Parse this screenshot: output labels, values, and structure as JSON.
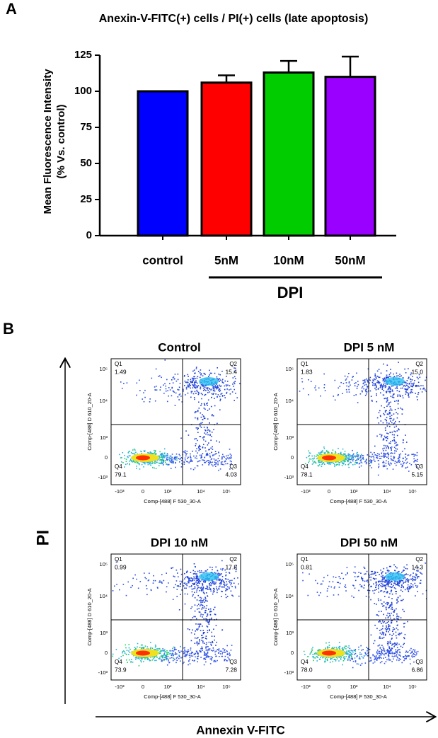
{
  "panel_labels": [
    "A",
    "B"
  ],
  "chart_data": {
    "type": "bar",
    "title": "Anexin-V-FITC(+) cells / PI(+) cells (late apoptosis)",
    "y_label": [
      "Mean Fluorescence Intensity",
      "(% Vs. control)"
    ],
    "categories": [
      "control",
      "5nM",
      "10nM",
      "50nM"
    ],
    "group_label": "DPI",
    "values": [
      100,
      106,
      113,
      110
    ],
    "errors": [
      0,
      5,
      8,
      14
    ],
    "colors": [
      "#0000ff",
      "#ff0000",
      "#00cc00",
      "#9900ff"
    ],
    "ylim": [
      0,
      125
    ],
    "yticks": [
      0,
      25,
      50,
      75,
      100,
      125
    ]
  },
  "flow": {
    "y_axis_label": "Comp-[488] D 610_20-A",
    "x_axis_label": "Comp-[488] F 530_30-A",
    "yticks": [
      "10⁵",
      "10⁴",
      "10³",
      "0",
      "-10³"
    ],
    "xticks": [
      "-10³",
      "0",
      "10³",
      "10⁴",
      "10⁵"
    ],
    "axis_y_title": "PI",
    "axis_x_title": "Annexin V-FITC",
    "plots": [
      {
        "title": "Control",
        "quadrants": [
          {
            "name": "Q1",
            "value": "1.49"
          },
          {
            "name": "Q2",
            "value": "15.4"
          },
          {
            "name": "Q3",
            "value": "4.03"
          },
          {
            "name": "Q4",
            "value": "79.1"
          }
        ]
      },
      {
        "title": "DPI 5 nM",
        "quadrants": [
          {
            "name": "Q1",
            "value": "1.83"
          },
          {
            "name": "Q2",
            "value": "15.0"
          },
          {
            "name": "Q3",
            "value": "5.15"
          },
          {
            "name": "Q4",
            "value": "78.1"
          }
        ]
      },
      {
        "title": "DPI 10 nM",
        "quadrants": [
          {
            "name": "Q1",
            "value": "0.99"
          },
          {
            "name": "Q2",
            "value": "17.8"
          },
          {
            "name": "Q3",
            "value": "7.28"
          },
          {
            "name": "Q4",
            "value": "73.9"
          }
        ]
      },
      {
        "title": "DPI 50 nM",
        "quadrants": [
          {
            "name": "Q1",
            "value": "0.81"
          },
          {
            "name": "Q2",
            "value": "14.3"
          },
          {
            "name": "Q3",
            "value": "6.86"
          },
          {
            "name": "Q4",
            "value": "78.0"
          }
        ]
      }
    ]
  }
}
